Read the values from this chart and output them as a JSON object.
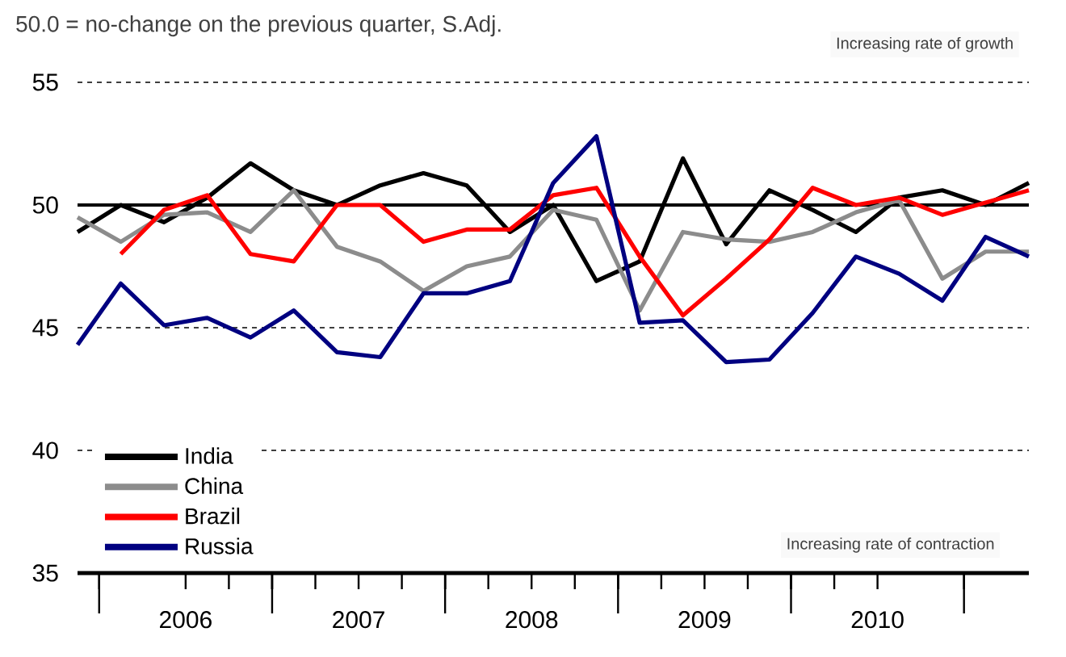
{
  "chart_data": {
    "type": "line",
    "title": "50.0 = no-change on the previous quarter, S.Adj.",
    "annotations": [
      "Increasing rate of growth",
      "Increasing rate of contraction"
    ],
    "x": [
      2005.875,
      2006.125,
      2006.375,
      2006.625,
      2006.875,
      2007.125,
      2007.375,
      2007.625,
      2007.875,
      2008.125,
      2008.375,
      2008.625,
      2008.875,
      2009.125,
      2009.375,
      2009.625,
      2009.875,
      2010.125,
      2010.375,
      2010.625,
      2010.875,
      2011.125,
      2011.375
    ],
    "series": [
      {
        "name": "India",
        "color": "#000000",
        "values": [
          48.9,
          50.0,
          49.3,
          50.3,
          51.7,
          50.6,
          50.0,
          50.8,
          51.3,
          50.8,
          48.9,
          50.0,
          46.9,
          47.7,
          51.9,
          48.4,
          50.6,
          49.8,
          48.9,
          50.3,
          50.6,
          50.0,
          50.9
        ]
      },
      {
        "name": "China",
        "color": "#8c8c8c",
        "values": [
          49.5,
          48.5,
          49.6,
          49.7,
          48.9,
          50.6,
          48.3,
          47.7,
          46.5,
          47.5,
          47.9,
          49.8,
          49.4,
          45.7,
          48.9,
          48.6,
          48.5,
          48.9,
          49.7,
          50.2,
          47.0,
          48.1,
          48.1
        ]
      },
      {
        "name": "Brazil",
        "color": "#ff0000",
        "values": [
          null,
          48.0,
          49.8,
          50.4,
          48.0,
          47.7,
          50.0,
          50.0,
          48.5,
          49.0,
          49.0,
          50.4,
          50.7,
          47.9,
          45.5,
          47.0,
          48.6,
          50.7,
          50.0,
          50.3,
          49.6,
          50.1,
          50.6
        ]
      },
      {
        "name": "Russia",
        "color": "#000080",
        "values": [
          44.3,
          46.8,
          45.1,
          45.4,
          44.6,
          45.7,
          44.0,
          43.8,
          46.4,
          46.4,
          46.9,
          50.9,
          52.8,
          45.2,
          45.3,
          43.6,
          43.7,
          45.6,
          47.9,
          47.2,
          46.1,
          48.7,
          47.9
        ]
      }
    ],
    "xlim": [
      2005.875,
      2011.375
    ],
    "xticks": [
      {
        "value": 2006,
        "label": null
      },
      {
        "value": 2007,
        "label": null
      },
      {
        "value": 2008,
        "label": null
      },
      {
        "value": 2009,
        "label": null
      },
      {
        "value": 2010,
        "label": null
      },
      {
        "value": 2011,
        "label": null
      },
      {
        "value": 2006.5,
        "label": "2006"
      },
      {
        "value": 2007.5,
        "label": "2007"
      },
      {
        "value": 2008.5,
        "label": "2008"
      },
      {
        "value": 2009.5,
        "label": "2009"
      },
      {
        "value": 2010.5,
        "label": "2010"
      }
    ],
    "ylim": [
      35,
      55
    ],
    "yticks": [
      35,
      40,
      45,
      50,
      55
    ],
    "ref_lines": [
      {
        "axis": "y",
        "value": 50,
        "color": "#000000",
        "line_style": "solid"
      }
    ],
    "grid": "y",
    "legend": "bottom left",
    "marker": "none",
    "line_style": "solid"
  }
}
